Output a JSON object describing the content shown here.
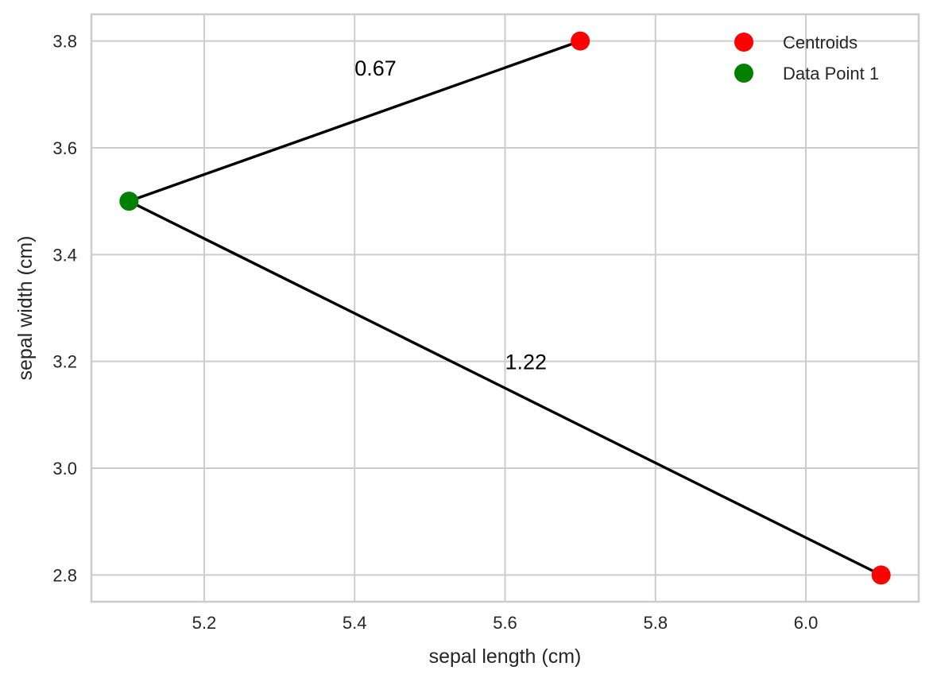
{
  "chart_data": {
    "type": "scatter",
    "title": "",
    "xlabel": "sepal length (cm)",
    "ylabel": "sepal width (cm)",
    "xlim": [
      5.05,
      6.15
    ],
    "ylim": [
      2.75,
      3.85
    ],
    "grid": true,
    "legend_position": "top-right",
    "xticks": [
      {
        "value": 5.2,
        "label": "5.2"
      },
      {
        "value": 5.4,
        "label": "5.4"
      },
      {
        "value": 5.6,
        "label": "5.6"
      },
      {
        "value": 5.8,
        "label": "5.8"
      },
      {
        "value": 6.0,
        "label": "6.0"
      }
    ],
    "yticks": [
      {
        "value": 2.8,
        "label": "2.8"
      },
      {
        "value": 3.0,
        "label": "3.0"
      },
      {
        "value": 3.2,
        "label": "3.2"
      },
      {
        "value": 3.4,
        "label": "3.4"
      },
      {
        "value": 3.6,
        "label": "3.6"
      },
      {
        "value": 3.8,
        "label": "3.8"
      }
    ],
    "series": [
      {
        "name": "Centroids",
        "color": "#ff0000",
        "points": [
          {
            "x": 5.7,
            "y": 3.8
          },
          {
            "x": 6.1,
            "y": 2.8
          }
        ]
      },
      {
        "name": "Data Point 1",
        "color": "#008000",
        "points": [
          {
            "x": 5.1,
            "y": 3.5
          }
        ]
      }
    ],
    "lines": [
      {
        "from": {
          "x": 5.1,
          "y": 3.5
        },
        "to": {
          "x": 5.7,
          "y": 3.8
        },
        "color": "#000000"
      },
      {
        "from": {
          "x": 5.1,
          "y": 3.5
        },
        "to": {
          "x": 6.1,
          "y": 2.8
        },
        "color": "#000000"
      }
    ],
    "annotations": [
      {
        "text": "0.67",
        "x": 5.4,
        "y": 3.75
      },
      {
        "text": "1.22",
        "x": 5.6,
        "y": 3.2
      }
    ]
  }
}
